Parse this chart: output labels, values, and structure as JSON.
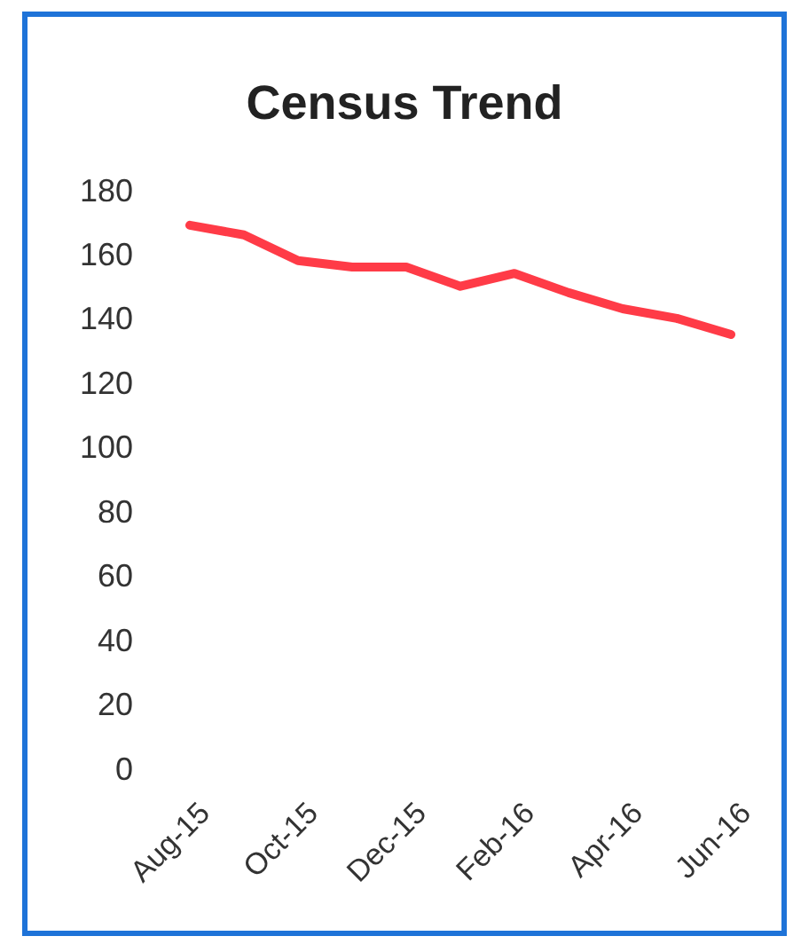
{
  "chart_data": {
    "type": "line",
    "title": "Census Trend",
    "categories": [
      "Aug-15",
      null,
      "Oct-15",
      null,
      "Dec-15",
      null,
      "Feb-16",
      null,
      "Apr-16",
      null,
      "Jun-16"
    ],
    "series": [
      {
        "color": "#ff3b47",
        "values": [
          169,
          166,
          158,
          156,
          156,
          150,
          154,
          148,
          143,
          140,
          135
        ]
      }
    ],
    "ylim": [
      0,
      180
    ],
    "yticks": [
      0,
      20,
      40,
      60,
      80,
      100,
      120,
      140,
      160,
      180
    ],
    "marker": "none",
    "line_style": "solid"
  }
}
